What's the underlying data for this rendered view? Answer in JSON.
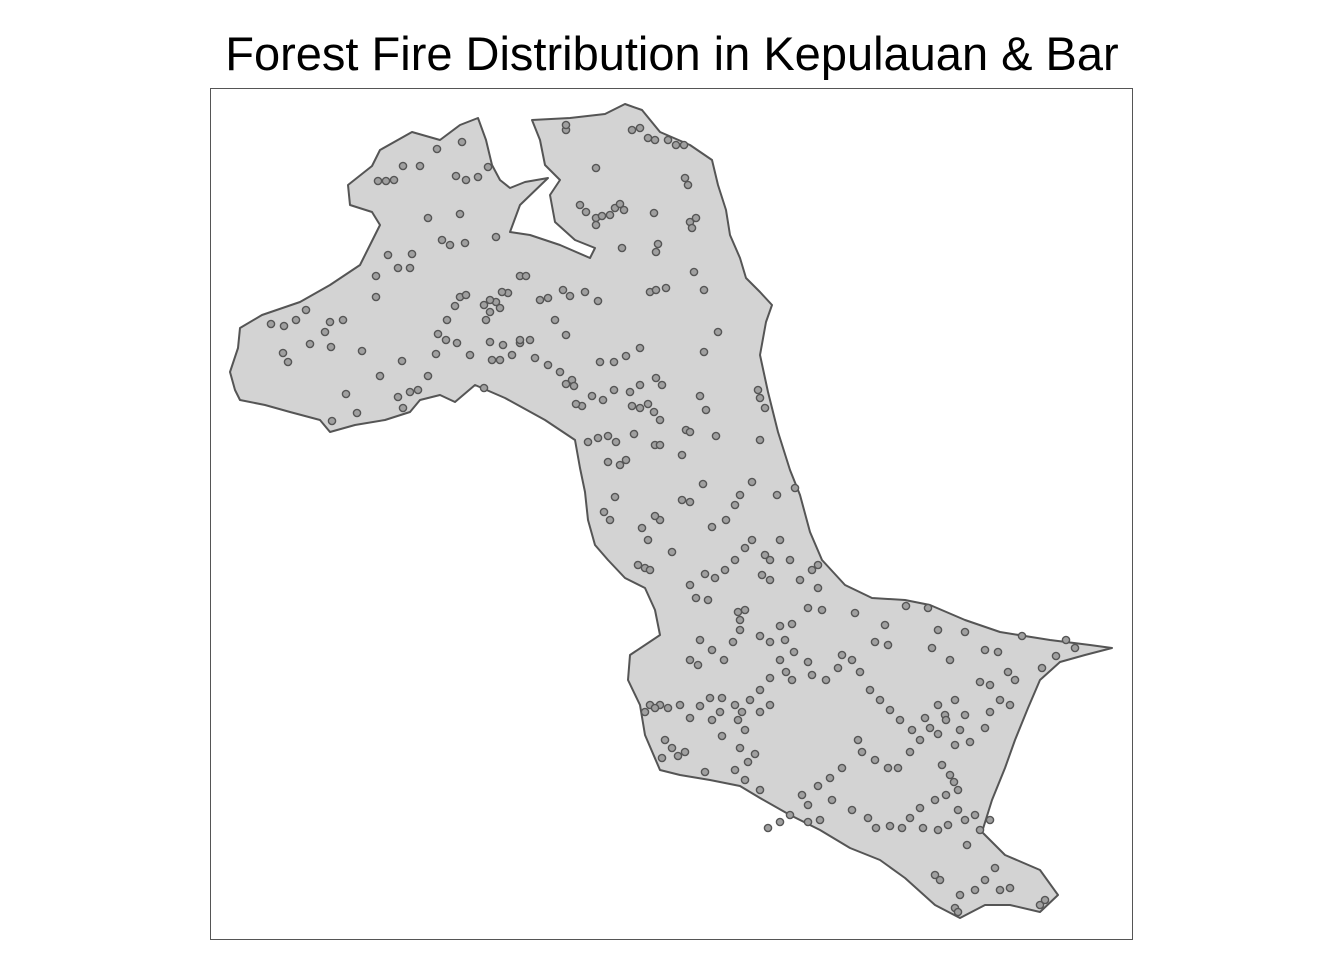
{
  "map": {
    "title": "Forest Fire Distribution in Kepulauan & Bar",
    "colors": {
      "region_fill": "#d3d3d3",
      "region_border": "#555555",
      "point_fill": "#a0a0a0",
      "point_stroke": "#555555",
      "frame_border": "#555555",
      "background": "#ffffff"
    },
    "symbology": "fire hotspot points over filled region boundary"
  }
}
